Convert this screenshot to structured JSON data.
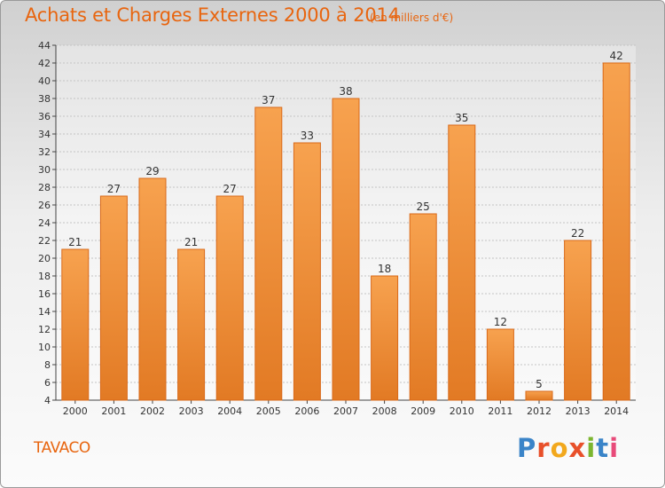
{
  "header": {
    "title": "Achats et Charges Externes 2000 à 2014",
    "unit": "(en milliers d'€)"
  },
  "footer": {
    "commune": "TAVACO",
    "logo_text": "Proxiti"
  },
  "colors": {
    "accent": "#e8650f",
    "bar_top": "#f7a24f",
    "bar_bottom": "#e27a24",
    "bar_border": "#d96a1a"
  },
  "chart_data": {
    "type": "bar",
    "title": "Achats et Charges Externes 2000 à 2014",
    "subtitle": "(en milliers d'€)",
    "xlabel": "",
    "ylabel": "",
    "categories": [
      "2000",
      "2001",
      "2002",
      "2003",
      "2004",
      "2005",
      "2006",
      "2007",
      "2008",
      "2009",
      "2010",
      "2011",
      "2012",
      "2013",
      "2014"
    ],
    "values": [
      21,
      27,
      29,
      21,
      27,
      37,
      33,
      38,
      18,
      25,
      35,
      12,
      5,
      22,
      42
    ],
    "ylim": [
      4,
      44
    ],
    "yticks": [
      4,
      6,
      8,
      10,
      12,
      14,
      16,
      18,
      20,
      22,
      24,
      26,
      28,
      30,
      32,
      34,
      36,
      38,
      40,
      42,
      44
    ],
    "grid": true,
    "legend": "none"
  }
}
